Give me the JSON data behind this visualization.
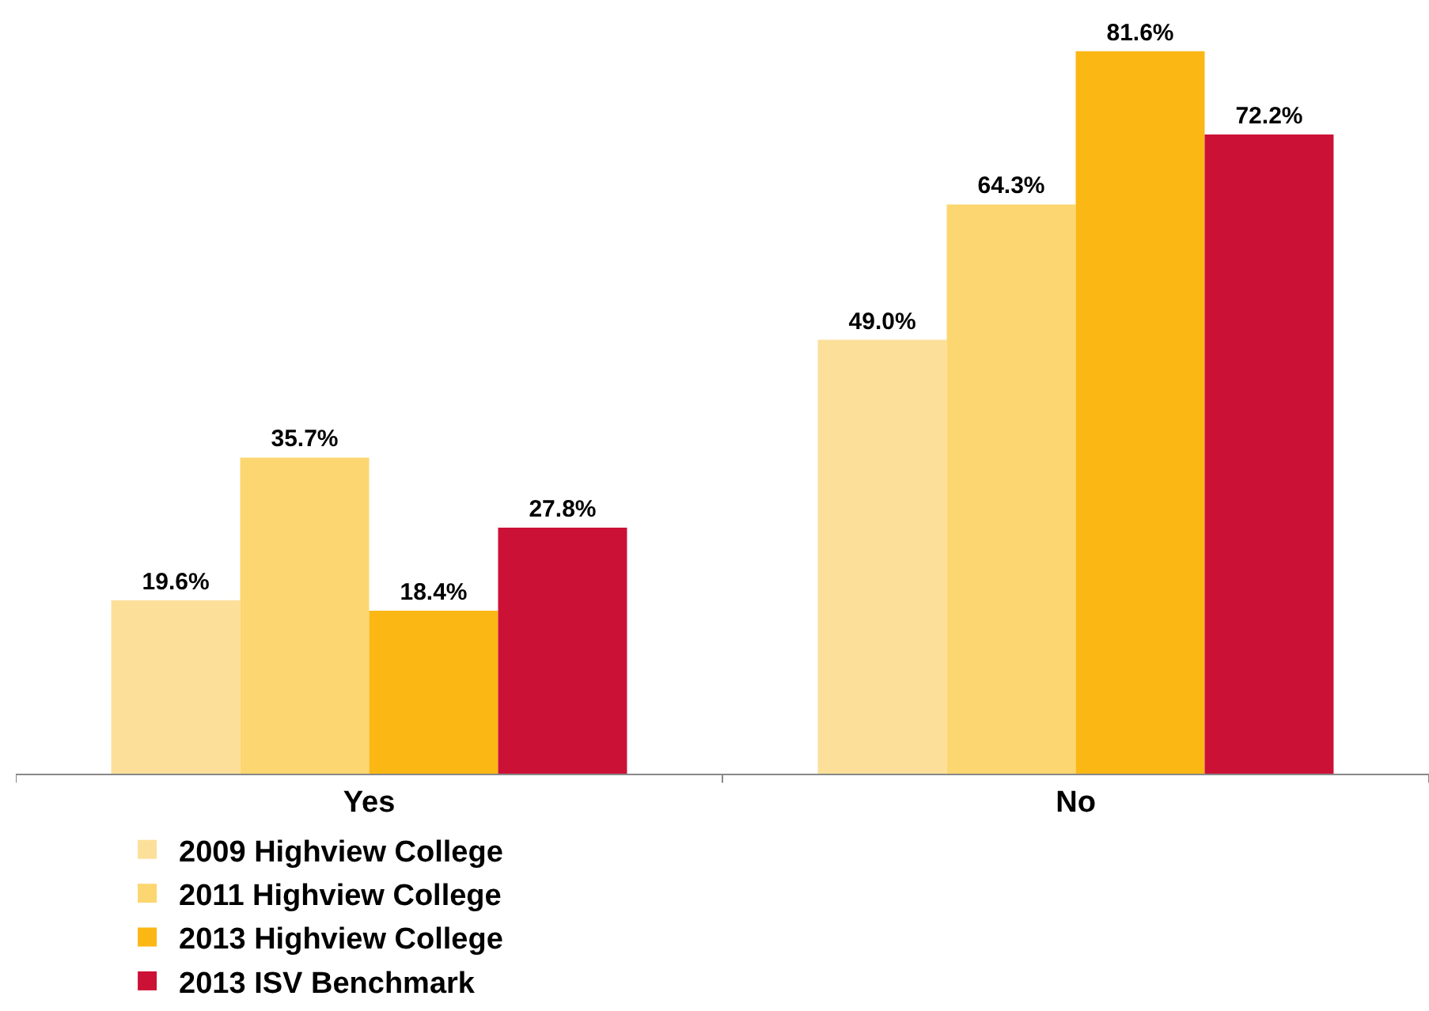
{
  "chart_data": {
    "type": "bar",
    "categories": [
      "Yes",
      "No"
    ],
    "series": [
      {
        "name": "2009 Highview College",
        "color": "#fce09a",
        "values": [
          19.6,
          49.0
        ],
        "value_labels": [
          "19.6%",
          "49.0%"
        ]
      },
      {
        "name": "2011 Highview College",
        "color": "#fcd670",
        "values": [
          35.7,
          64.3
        ],
        "value_labels": [
          "35.7%",
          "64.3%"
        ]
      },
      {
        "name": "2013 Highview College",
        "color": "#fbb714",
        "values": [
          18.4,
          81.6
        ],
        "value_labels": [
          "18.4%",
          "81.6%"
        ]
      },
      {
        "name": "2013 ISV Benchmark",
        "color": "#cc1136",
        "values": [
          27.8,
          72.2
        ],
        "value_labels": [
          "27.8%",
          "72.2%"
        ]
      }
    ],
    "legend": "bottom",
    "tick_labels": "x"
  }
}
